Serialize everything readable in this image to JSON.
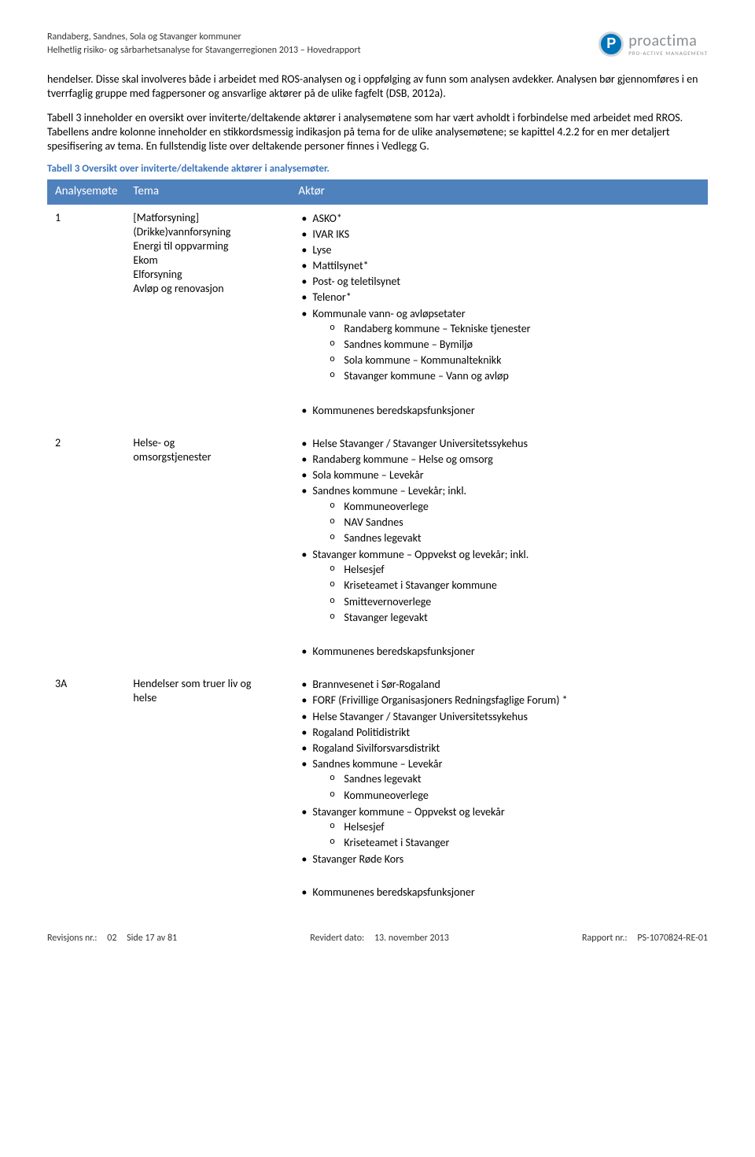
{
  "header": {
    "line1": "Randaberg, Sandnes, Sola og Stavanger kommuner",
    "line2": "Helhetlig risiko- og sårbarhetsanalyse for Stavangerregionen 2013 – Hovedrapport",
    "logo_brand": "proactima",
    "logo_tag": "PRO-ACTIVE MANAGEMENT"
  },
  "paragraphs": {
    "p1": "hendelser. Disse skal involveres både i arbeidet med ROS-analysen og i oppfølging av funn som analysen avdekker. Analysen bør gjennomføres i en tverrfaglig gruppe med fagpersoner og ansvarlige aktører på de ulike fagfelt (DSB, 2012a).",
    "p2": "Tabell 3 inneholder en oversikt over inviterte/deltakende aktører i analysemøtene som har vært avholdt i forbindelse med arbeidet med RROS. Tabellens andre kolonne inneholder en stikkordsmessig indikasjon på tema for de ulike analysemøtene; se kapittel 4.2.2 for en mer detaljert spesifisering av tema. En fullstendig liste over deltakende personer finnes i Vedlegg G."
  },
  "table": {
    "caption": "Tabell 3 Oversikt over inviterte/deltakende aktører i analysemøter.",
    "headers": {
      "c1": "Analysemøte",
      "c2": "Tema",
      "c3": "Aktør"
    },
    "row1": {
      "num": "1",
      "tema": [
        "[Matforsyning]",
        "(Drikke)vannforsyning",
        "Energi til oppvarming",
        "Ekom",
        "Elforsyning",
        "Avløp og renovasjon"
      ],
      "aktor": {
        "top": [
          "ASKO*",
          "IVAR IKS",
          "Lyse",
          "Mattilsynet*",
          "Post- og teletilsynet",
          "Telenor*"
        ],
        "group_label": "Kommunale vann- og avløpsetater",
        "group_items": [
          "Randaberg kommune – Tekniske tjenester",
          "Sandnes kommune – Bymiljø",
          "Sola kommune – Kommunalteknikk",
          "Stavanger kommune – Vann og avløp"
        ],
        "trailing": "Kommunenes beredskapsfunksjoner"
      }
    },
    "row2": {
      "num": "2",
      "tema": [
        "Helse- og",
        "omsorgstjenester"
      ],
      "aktor": {
        "top": [
          "Helse Stavanger / Stavanger Universitetssykehus",
          "Randaberg kommune – Helse og omsorg",
          "Sola kommune – Levekår"
        ],
        "g1_label": "Sandnes kommune – Levekår; inkl.",
        "g1_items": [
          "Kommuneoverlege",
          "NAV Sandnes",
          "Sandnes legevakt"
        ],
        "g2_label": "Stavanger kommune – Oppvekst og levekår; inkl.",
        "g2_items": [
          "Helsesjef",
          "Kriseteamet i Stavanger kommune",
          "Smittevernoverlege",
          "Stavanger legevakt"
        ],
        "trailing": "Kommunenes beredskapsfunksjoner"
      }
    },
    "row3": {
      "num": "3A",
      "tema": [
        "Hendelser som truer liv og",
        "helse"
      ],
      "aktor": {
        "top": [
          "Brannvesenet i Sør-Rogaland",
          "FORF (Frivillige Organisasjoners Redningsfaglige Forum) *",
          "Helse Stavanger / Stavanger Universitetssykehus",
          "Rogaland Politidistrikt",
          "Rogaland Sivilforsvarsdistrikt"
        ],
        "g1_label": "Sandnes kommune – Levekår",
        "g1_items": [
          "Sandnes legevakt",
          "Kommuneoverlege"
        ],
        "g2_label": "Stavanger kommune – Oppvekst og levekår",
        "g2_items": [
          "Helsesjef",
          "Kriseteamet i Stavanger"
        ],
        "tail_simple": "Stavanger Røde Kors",
        "trailing": "Kommunenes beredskapsfunksjoner"
      }
    }
  },
  "footer": {
    "rev_label": "Revisjons nr.:",
    "rev_val": "02",
    "page_label": "Side 17 av 81",
    "date_label": "Revidert dato:",
    "date_val": "13. november 2013",
    "rep_label": "Rapport nr.:",
    "rep_val": "PS-1070824-RE-01"
  },
  "colors": {
    "header_blue": "#4f81bd",
    "caption_blue": "#3b73b9",
    "logo_blue": "#0073b8",
    "logo_grey": "#8a8f95"
  }
}
